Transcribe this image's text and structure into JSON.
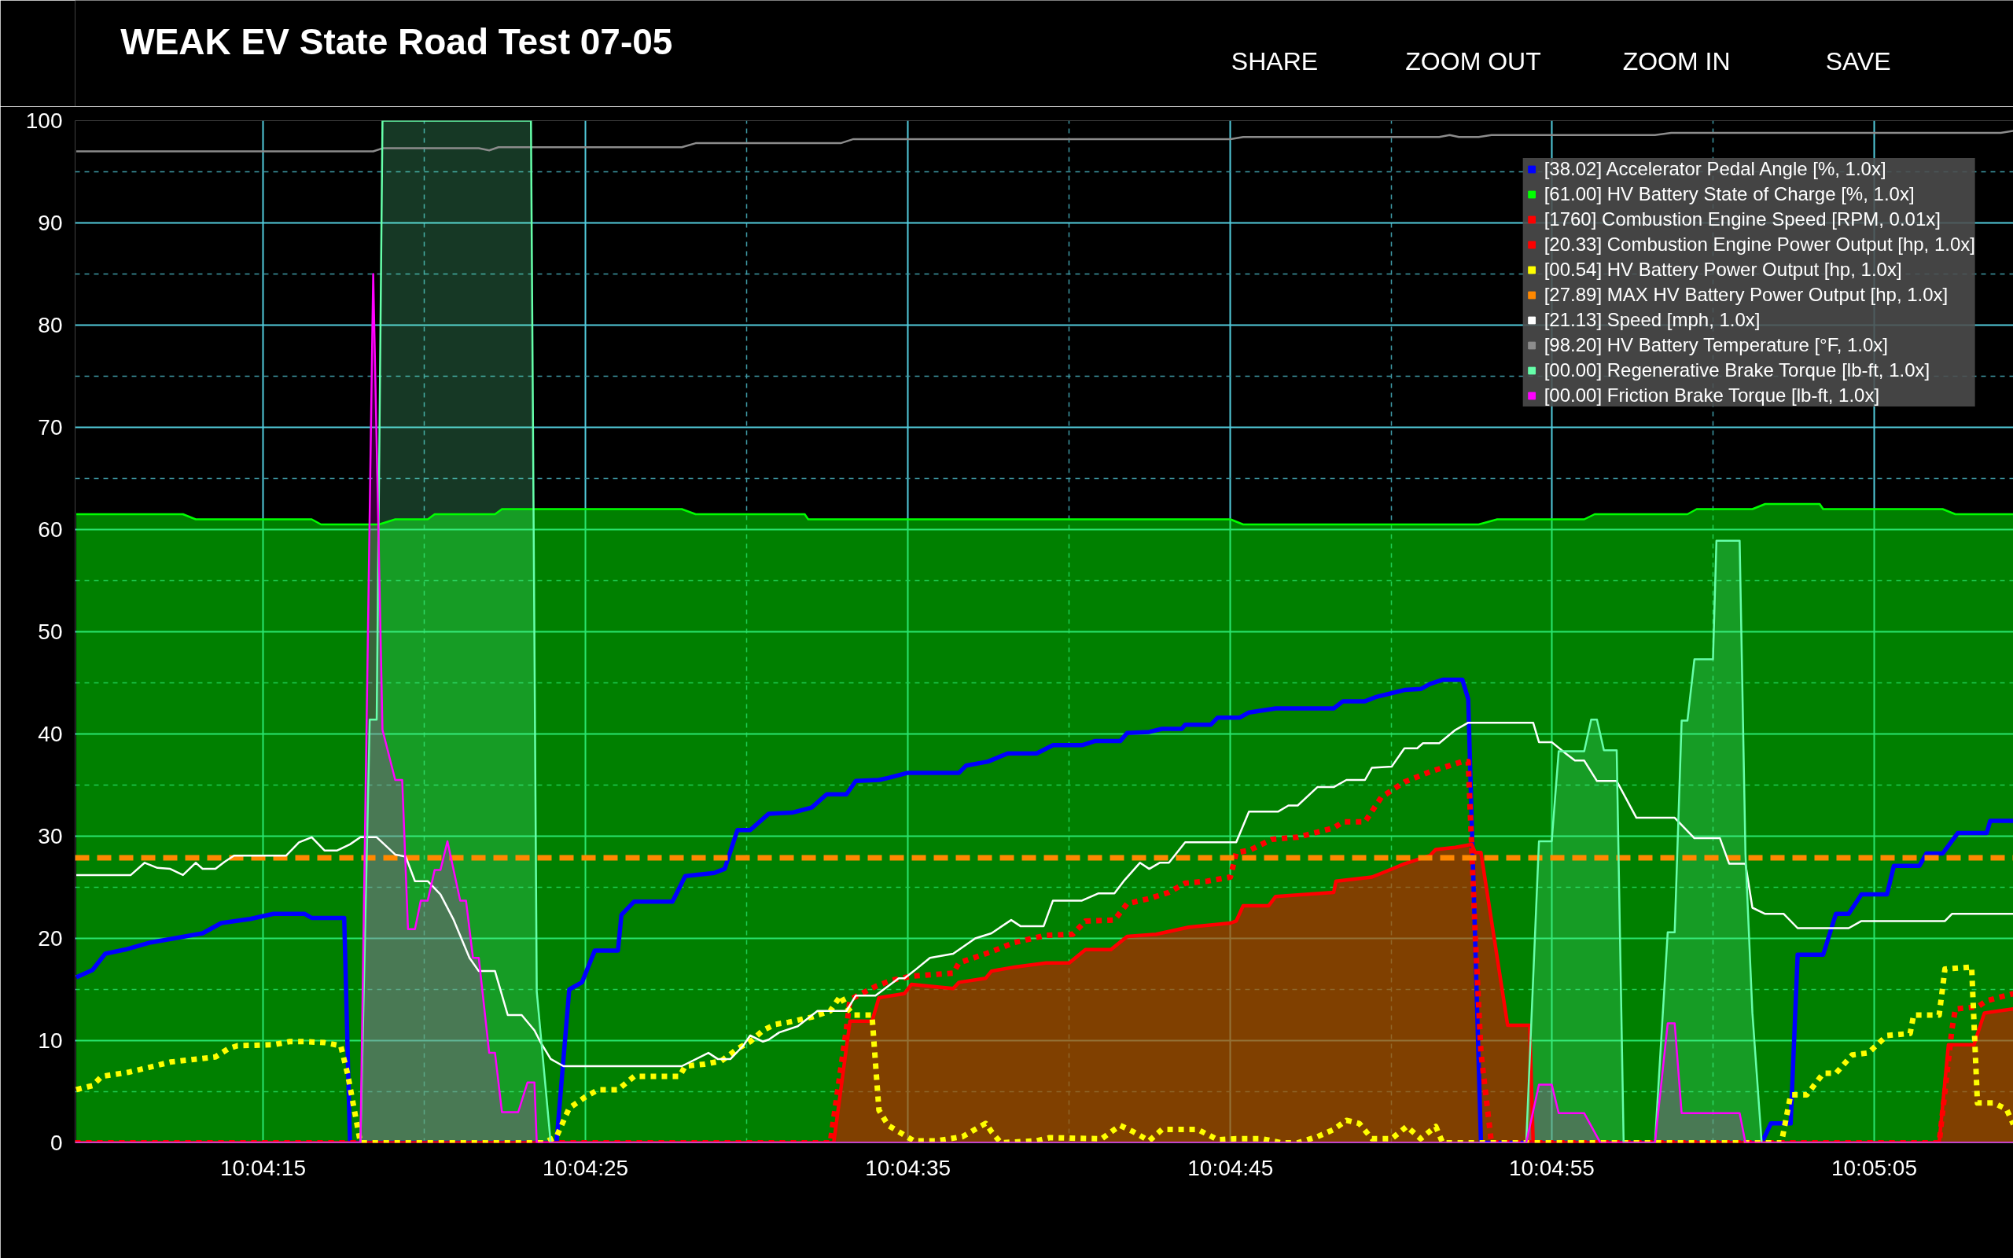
{
  "chart_data": {
    "type": "line",
    "title": "WEAK EV State Road Test 07-05",
    "annotations": [
      "SHARE",
      "ZOOM OUT",
      "ZOOM IN",
      "SAVE"
    ],
    "xlim": [
      10.06921,
      10.08592
    ],
    "xticks": [
      {
        "value": 10.07083,
        "label": "10:04:15"
      },
      {
        "value": 10.07222,
        "label": null
      },
      {
        "value": 10.07361,
        "label": "10:04:25"
      },
      {
        "value": 10.075,
        "label": null
      },
      {
        "value": 10.07639,
        "label": "10:04:35"
      },
      {
        "value": 10.07778,
        "label": null
      },
      {
        "value": 10.07917,
        "label": "10:04:45"
      },
      {
        "value": 10.08056,
        "label": null
      },
      {
        "value": 10.08194,
        "label": "10:04:55"
      },
      {
        "value": 10.08333,
        "label": null
      },
      {
        "value": 10.08472,
        "label": "10:05:05"
      }
    ],
    "ylim": [
      0,
      100
    ],
    "yticks": [
      0,
      {
        "value": 5,
        "label": null
      },
      10,
      {
        "value": 15,
        "label": null
      },
      20,
      {
        "value": 25,
        "label": null
      },
      30,
      {
        "value": 35,
        "label": null
      },
      40,
      {
        "value": 45,
        "label": null
      },
      50,
      {
        "value": 55,
        "label": null
      },
      60,
      {
        "value": 65,
        "label": null
      },
      70,
      {
        "value": 75,
        "label": null
      },
      80,
      {
        "value": 85,
        "label": null
      },
      90,
      {
        "value": 95,
        "label": null
      },
      100
    ],
    "grid": true,
    "legend": "top right",
    "series": [
      {
        "name": "[38.02] Accelerator Pedal Angle [%, 1.0x]",
        "color": "#0000ff",
        "x": [
          10.06922,
          10.06936,
          10.06947,
          10.06964,
          10.06986,
          10.07011,
          10.07031,
          10.07047,
          10.07072,
          10.07092,
          10.07119,
          10.07125,
          10.07153,
          10.07158,
          10.07336,
          10.07347,
          10.07358,
          10.07369,
          10.07389,
          10.07392,
          10.07403,
          10.07436,
          10.07447,
          10.07472,
          10.07481,
          10.07492,
          10.07503,
          10.07519,
          10.07539,
          10.07556,
          10.07569,
          10.07586,
          10.07594,
          10.07614,
          10.07622,
          10.07639,
          10.07683,
          10.07689,
          10.07708,
          10.07725,
          10.0775,
          10.07764,
          10.07789,
          10.078,
          10.07822,
          10.07828,
          10.07847,
          10.07858,
          10.07875,
          10.07878,
          10.079,
          10.07906,
          10.07925,
          10.07933,
          10.07956,
          10.08006,
          10.08014,
          10.08033,
          10.08042,
          10.08067,
          10.08081,
          10.08089,
          10.081,
          10.08117,
          10.08122,
          10.08133,
          10.08375,
          10.08383,
          10.084,
          10.08406,
          10.08428,
          10.08439,
          10.0845,
          10.08461,
          10.08483,
          10.08489,
          10.08511,
          10.08517,
          10.08531,
          10.08544,
          10.08569,
          10.08572,
          10.08592
        ],
        "values": [
          16.2,
          16.9,
          18.5,
          18.9,
          19.6,
          20.1,
          20.5,
          21.5,
          21.9,
          22.4,
          22.4,
          22.0,
          22.0,
          0,
          0,
          15.0,
          15.7,
          18.8,
          18.8,
          22.3,
          23.6,
          23.6,
          26.1,
          26.4,
          26.8,
          30.6,
          30.6,
          32.2,
          32.3,
          32.8,
          34.1,
          34.1,
          35.4,
          35.5,
          35.7,
          36.2,
          36.2,
          36.9,
          37.3,
          38.1,
          38.1,
          38.9,
          38.9,
          39.3,
          39.3,
          40.1,
          40.2,
          40.5,
          40.5,
          40.9,
          40.9,
          41.6,
          41.6,
          42.1,
          42.5,
          42.5,
          43.2,
          43.2,
          43.6,
          44.3,
          44.4,
          44.9,
          45.3,
          45.3,
          43.4,
          0,
          0,
          1.9,
          1.9,
          18.4,
          18.4,
          22.4,
          22.4,
          24.3,
          24.3,
          27.1,
          27.1,
          28.3,
          28.3,
          30.3,
          30.3,
          31.5,
          31.5
        ]
      },
      {
        "name": "[61.00] HV Battery State of Charge [%, 1.0x]",
        "color": "#00ff00",
        "type": "area",
        "x": [
          10.06922,
          10.07014,
          10.07025,
          10.07125,
          10.07133,
          10.07183,
          10.07197,
          10.07225,
          10.07231,
          10.07283,
          10.07289,
          10.07444,
          10.07456,
          10.0755,
          10.07553,
          10.07917,
          10.07928,
          10.08131,
          10.08147,
          10.08222,
          10.08231,
          10.08311,
          10.08319,
          10.08367,
          10.08378,
          10.08425,
          10.08428,
          10.08531,
          10.08542,
          10.08592
        ],
        "values": [
          61.5,
          61.5,
          61.0,
          61.0,
          60.5,
          60.5,
          61.0,
          61.0,
          61.5,
          61.5,
          62.0,
          62.0,
          61.5,
          61.5,
          61.0,
          61.0,
          60.5,
          60.5,
          61.0,
          61.0,
          61.5,
          61.5,
          62.0,
          62.0,
          62.5,
          62.5,
          62.0,
          62.0,
          61.5,
          61.5
        ]
      },
      {
        "name": "[1760] Combustion Engine Speed [RPM, 0.01x]",
        "color": "#ff0000",
        "type": "area",
        "x": [
          10.06921,
          10.07575,
          10.07589,
          10.07608,
          10.07614,
          10.07636,
          10.07642,
          10.07678,
          10.07683,
          10.07706,
          10.07711,
          10.07731,
          10.07758,
          10.07778,
          10.07792,
          10.07814,
          10.07828,
          10.07853,
          10.07881,
          10.07917,
          10.07922,
          10.07928,
          10.0795,
          10.07956,
          10.08006,
          10.08008,
          10.08039,
          10.0805,
          10.08067,
          10.08089,
          10.08094,
          10.08111,
          10.08125,
          10.08128,
          10.08133,
          10.08156,
          10.08175,
          10.08178,
          10.08528,
          10.08536,
          10.08558,
          10.08567,
          10.08592
        ],
        "values": [
          0,
          0,
          11.9,
          11.9,
          14.2,
          14.6,
          15.5,
          15.1,
          15.7,
          16.1,
          16.8,
          17.2,
          17.6,
          17.6,
          18.9,
          18.9,
          20.2,
          20.4,
          21.1,
          21.5,
          21.7,
          23.2,
          23.2,
          24.1,
          24.5,
          25.6,
          26.0,
          26.5,
          27.3,
          28.1,
          28.7,
          28.9,
          29.2,
          28.4,
          28.4,
          11.5,
          11.5,
          0,
          0,
          9.6,
          9.6,
          12.7,
          13.1
        ]
      },
      {
        "name": "[20.33] Combustion Engine Power Output [hp, 1.0x]",
        "color": "#ff0000",
        "line_style": "dotted",
        "x": [
          10.06921,
          10.07572,
          10.07586,
          10.07589,
          10.07611,
          10.07625,
          10.07642,
          10.07678,
          10.07683,
          10.07711,
          10.07731,
          10.07758,
          10.07781,
          10.07792,
          10.07817,
          10.07828,
          10.07847,
          10.07864,
          10.07878,
          10.07897,
          10.07917,
          10.07922,
          10.07933,
          10.07953,
          10.07975,
          10.08006,
          10.08014,
          10.08033,
          10.08047,
          10.08067,
          10.08089,
          10.08117,
          10.08122,
          10.08128,
          10.08133,
          10.08142,
          10.08528,
          10.08539,
          10.08542,
          10.08561,
          10.08569,
          10.08592
        ],
        "values": [
          0,
          0,
          11.2,
          14.0,
          15.3,
          15.9,
          16.3,
          16.6,
          17.6,
          18.7,
          19.6,
          20.3,
          20.4,
          21.7,
          21.8,
          23.4,
          23.9,
          24.5,
          25.4,
          25.6,
          26.0,
          28.4,
          28.6,
          29.7,
          29.9,
          30.8,
          31.4,
          31.4,
          33.8,
          35.3,
          36.3,
          37.3,
          37.3,
          20.5,
          8.8,
          0,
          0,
          11.1,
          13.1,
          13.3,
          13.9,
          14.6
        ]
      },
      {
        "name": "[00.54] HV Battery Power Output [hp, 1.0x]",
        "color": "#ffff00",
        "line_style": "dotted",
        "x": [
          10.06922,
          10.06936,
          10.06944,
          10.06967,
          10.06989,
          10.07003,
          10.07042,
          10.07053,
          10.07061,
          10.07092,
          10.07106,
          10.07119,
          10.07136,
          10.0715,
          10.07156,
          10.07167,
          10.07325,
          10.07336,
          10.07347,
          10.07361,
          10.07372,
          10.07389,
          10.07403,
          10.07442,
          10.07447,
          10.07464,
          10.07478,
          10.07492,
          10.07503,
          10.07514,
          10.07525,
          10.07536,
          10.07556,
          10.07572,
          10.07581,
          10.07586,
          10.07592,
          10.07608,
          10.07614,
          10.07622,
          10.07644,
          10.07664,
          10.07686,
          10.07706,
          10.07711,
          10.07719,
          10.0775,
          10.07761,
          10.07806,
          10.07822,
          10.07833,
          10.07847,
          10.07858,
          10.07889,
          10.07906,
          10.07922,
          10.07944,
          10.07961,
          10.07975,
          10.07992,
          10.08006,
          10.08017,
          10.08028,
          10.08039,
          10.08056,
          10.08069,
          10.08081,
          10.08094,
          10.081,
          10.08392,
          10.084,
          10.08414,
          10.08428,
          10.08439,
          10.08453,
          10.08467,
          10.08483,
          10.08503,
          10.08506,
          10.08528,
          10.08533,
          10.08556,
          10.08561,
          10.08575,
          10.08586,
          10.08592
        ],
        "values": [
          5.2,
          5.6,
          6.5,
          6.9,
          7.5,
          7.9,
          8.4,
          9.2,
          9.5,
          9.6,
          9.9,
          9.9,
          9.8,
          9.5,
          6.7,
          0,
          0,
          0.6,
          3.4,
          4.5,
          5.2,
          5.2,
          6.5,
          6.5,
          7.5,
          7.7,
          8.0,
          9.2,
          9.9,
          11.0,
          11.6,
          11.8,
          12.3,
          12.9,
          14.4,
          13.3,
          12.5,
          12.5,
          3.2,
          1.7,
          0.2,
          0.2,
          0.6,
          1.9,
          1.1,
          0,
          0.2,
          0.5,
          0.4,
          1.7,
          1.1,
          0.2,
          1.3,
          1.3,
          0.3,
          0.4,
          0.4,
          0,
          0,
          0.6,
          1.3,
          2.2,
          1.9,
          0.4,
          0.4,
          1.6,
          0.4,
          1.6,
          0,
          0,
          4.7,
          4.7,
          6.8,
          6.8,
          8.6,
          8.8,
          10.5,
          10.7,
          12.5,
          12.5,
          17.0,
          17.2,
          3.9,
          3.9,
          3.3,
          1.8
        ]
      },
      {
        "name": "[27.89] MAX HV Battery Power Output [hp, 1.0x]",
        "color": "#ff8800",
        "line_style": "dashed",
        "x": [
          10.06921,
          10.08592
        ],
        "values": [
          27.89,
          27.89
        ]
      },
      {
        "name": "[21.13] Speed [mph, 1.0x]",
        "color": "#ffffff",
        "x": [
          10.06922,
          10.06969,
          10.06981,
          10.06992,
          10.07003,
          10.07014,
          10.07025,
          10.07031,
          10.07042,
          10.0705,
          10.07058,
          10.07103,
          10.07114,
          10.07125,
          10.07136,
          10.07147,
          10.07158,
          10.07167,
          10.07181,
          10.07197,
          10.07206,
          10.07214,
          10.07225,
          10.07236,
          10.07247,
          10.07261,
          10.07269,
          10.07283,
          10.07294,
          10.07306,
          10.07317,
          10.07322,
          10.07331,
          10.07342,
          10.07444,
          10.07467,
          10.07475,
          10.07486,
          10.07497,
          10.07503,
          10.07514,
          10.07519,
          10.07528,
          10.07544,
          10.07561,
          10.07586,
          10.07594,
          10.07611,
          10.07631,
          10.07636,
          10.07644,
          10.07658,
          10.07678,
          10.07697,
          10.07711,
          10.07728,
          10.07736,
          10.07756,
          10.07764,
          10.07789,
          10.07803,
          10.07817,
          10.07825,
          10.07839,
          10.07847,
          10.07856,
          10.07864,
          10.07878,
          10.07922,
          10.07933,
          10.07958,
          10.07967,
          10.07975,
          10.07992,
          10.08006,
          10.08017,
          10.08033,
          10.08039,
          10.08056,
          10.08067,
          10.08078,
          10.08083,
          10.08097,
          10.08111,
          10.08122,
          10.08178,
          10.08183,
          10.08194,
          10.08206,
          10.08214,
          10.08222,
          10.08233,
          10.0825,
          10.08267,
          10.083,
          10.08317,
          10.08339,
          10.08347,
          10.08361,
          10.08367,
          10.08378,
          10.08394,
          10.08406,
          10.0845,
          10.08461,
          10.08533,
          10.08539,
          10.08592
        ],
        "values": [
          26.2,
          26.2,
          27.4,
          26.9,
          26.8,
          26.2,
          27.4,
          26.8,
          26.8,
          27.5,
          28.1,
          28.1,
          29.4,
          29.9,
          28.6,
          28.6,
          29.2,
          29.9,
          29.9,
          28.2,
          28.0,
          25.6,
          25.6,
          24.3,
          21.9,
          18.1,
          16.8,
          16.8,
          12.5,
          12.5,
          11.0,
          9.9,
          8.2,
          7.5,
          7.5,
          8.8,
          8.2,
          8.2,
          9.5,
          10.5,
          9.9,
          10.1,
          10.8,
          11.4,
          12.9,
          12.9,
          14.4,
          14.4,
          16.1,
          16.1,
          16.8,
          18.1,
          18.5,
          20.0,
          20.5,
          21.8,
          21.2,
          21.2,
          23.7,
          23.7,
          24.4,
          24.4,
          25.6,
          27.4,
          26.8,
          27.4,
          27.4,
          29.4,
          29.4,
          32.4,
          32.4,
          33.0,
          33.0,
          34.8,
          34.8,
          35.5,
          35.5,
          36.7,
          36.8,
          38.6,
          38.6,
          39.1,
          39.1,
          40.4,
          41.1,
          41.1,
          39.2,
          39.2,
          38.1,
          37.4,
          37.4,
          35.4,
          35.4,
          31.8,
          31.8,
          29.8,
          29.8,
          27.3,
          27.3,
          23.0,
          22.4,
          22.4,
          21.0,
          21.0,
          21.7,
          21.7,
          22.4,
          22.4
        ]
      },
      {
        "name": "[98.20] HV Battery Temperature [°F, 1.0x]",
        "color": "#8c8c8c",
        "x": [
          10.06922,
          10.07178,
          10.07186,
          10.07269,
          10.07278,
          10.07286,
          10.07444,
          10.07456,
          10.07581,
          10.07592,
          10.07917,
          10.07928,
          10.08097,
          10.08106,
          10.08114,
          10.08131,
          10.08142,
          10.08283,
          10.08297,
          10.08581,
          10.08592
        ],
        "values": [
          97.0,
          97.0,
          97.3,
          97.3,
          97.1,
          97.4,
          97.4,
          97.8,
          97.8,
          98.2,
          98.2,
          98.4,
          98.4,
          98.6,
          98.4,
          98.4,
          98.6,
          98.6,
          98.8,
          98.8,
          99.0
        ]
      },
      {
        "name": "[00.00] Regenerative Brake Torque [lb-ft, 1.0x]",
        "color": "#66ffaa",
        "type": "area",
        "x": [
          10.06921,
          10.07167,
          10.07175,
          10.07181,
          10.07186,
          10.07314,
          10.07319,
          10.07331,
          10.08172,
          10.08183,
          10.08194,
          10.082,
          10.08222,
          10.08228,
          10.08233,
          10.08239,
          10.0825,
          10.08256,
          10.08283,
          10.08294,
          10.083,
          10.08306,
          10.08311,
          10.08317,
          10.08333,
          10.08336,
          10.08356,
          10.08361,
          10.08367,
          10.08375,
          10.08592
        ],
        "values": [
          0,
          0,
          41.4,
          41.4,
          100,
          100,
          14.8,
          0,
          0,
          29.5,
          29.5,
          38.3,
          38.3,
          41.4,
          41.4,
          38.4,
          38.4,
          0,
          0,
          20.6,
          20.6,
          41.3,
          41.3,
          47.3,
          47.3,
          58.9,
          58.9,
          28.3,
          12.7,
          0,
          0
        ]
      },
      {
        "name": "[00.00] Friction Brake Torque [lb-ft, 1.0x]",
        "color": "#ff00ff",
        "type": "area",
        "x": [
          10.06921,
          10.07167,
          10.07178,
          10.07186,
          10.07197,
          10.07203,
          10.07208,
          10.07214,
          10.07219,
          10.07225,
          10.07231,
          10.07236,
          10.07242,
          10.07253,
          10.07258,
          10.07264,
          10.07269,
          10.07278,
          10.07283,
          10.07289,
          10.07303,
          10.07311,
          10.07317,
          10.07319,
          10.08172,
          10.08183,
          10.08194,
          10.082,
          10.08222,
          10.08236,
          10.08283,
          10.08294,
          10.083,
          10.08306,
          10.08356,
          10.08361,
          10.08592
        ],
        "values": [
          0,
          0,
          85,
          40.4,
          35.5,
          35.5,
          20.9,
          20.9,
          23.7,
          23.7,
          26.7,
          26.7,
          29.5,
          23.7,
          23.7,
          18.1,
          18.1,
          8.8,
          8.8,
          3.0,
          3.0,
          5.9,
          5.9,
          0,
          0,
          5.7,
          5.7,
          2.9,
          2.9,
          0,
          0,
          11.7,
          11.7,
          2.9,
          2.9,
          0,
          0
        ]
      }
    ]
  }
}
